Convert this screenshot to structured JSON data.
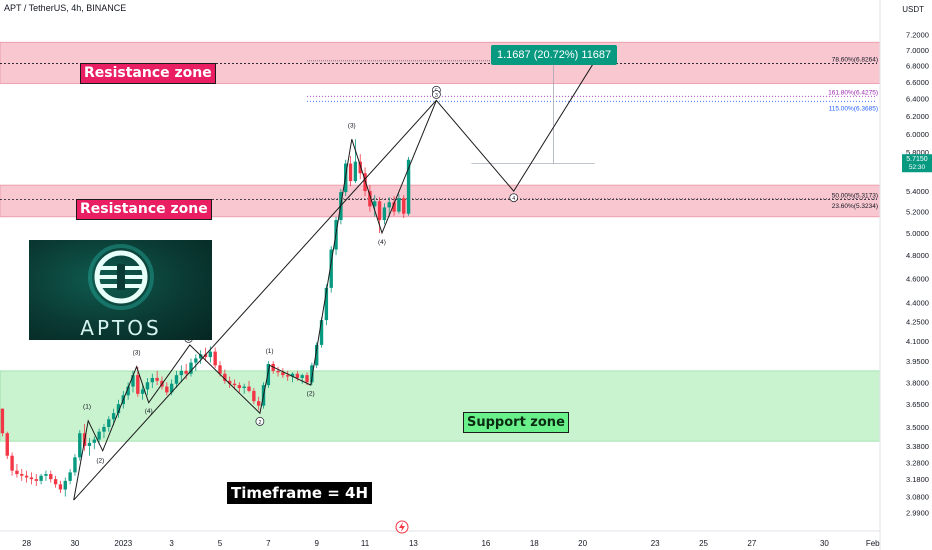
{
  "header": {
    "symbol": "APT / TetherUS, 4h, BINANCE",
    "currency": "USDT"
  },
  "logo": {
    "wordmark": "APTOS"
  },
  "annotations": {
    "resistance_upper": "Resistance zone",
    "resistance_lower": "Resistance zone",
    "support": "Support zone",
    "timeframe": "Timeframe = 4H",
    "measure": "1.1687 (20.72%) 11687"
  },
  "colors": {
    "up": "#089981",
    "down": "#f23645",
    "resistance": "#f8c7d0",
    "support": "#c9f2cf",
    "wave": "#1b1b1b"
  },
  "chart_data": {
    "type": "candlestick",
    "title": "",
    "scale": "log",
    "y_ticks": [
      7.2,
      7.0,
      6.8,
      6.6,
      6.4,
      6.2,
      6.0,
      5.8,
      5.4,
      5.2,
      5.0,
      4.8,
      4.6,
      4.4,
      4.25,
      4.1,
      3.95,
      3.8,
      3.65,
      3.5,
      3.38,
      3.28,
      3.18,
      3.08,
      2.99
    ],
    "y_tick_labels": [
      "7.2000",
      "7.0000",
      "6.8000",
      "6.6000",
      "6.4000",
      "6.2000",
      "6.0000",
      "5.8000",
      "5.4000",
      "5.2000",
      "5.0000",
      "4.8000",
      "4.6000",
      "4.4000",
      "4.2500",
      "4.1000",
      "3.9500",
      "3.8000",
      "3.6500",
      "3.5000",
      "3.3800",
      "3.2800",
      "3.1800",
      "3.0800",
      "2.9900"
    ],
    "ylim": [
      2.95,
      7.45
    ],
    "x_ticks": [
      {
        "label": "28",
        "day": -4
      },
      {
        "label": "30",
        "day": -2
      },
      {
        "label": "2023",
        "day": 0
      },
      {
        "label": "3",
        "day": 2
      },
      {
        "label": "5",
        "day": 4
      },
      {
        "label": "7",
        "day": 6
      },
      {
        "label": "9",
        "day": 8
      },
      {
        "label": "11",
        "day": 10
      },
      {
        "label": "13",
        "day": 12
      },
      {
        "label": "16",
        "day": 15
      },
      {
        "label": "18",
        "day": 17
      },
      {
        "label": "20",
        "day": 19
      },
      {
        "label": "23",
        "day": 22
      },
      {
        "label": "25",
        "day": 24
      },
      {
        "label": "27",
        "day": 26
      },
      {
        "label": "30",
        "day": 29
      },
      {
        "label": "Feb",
        "day": 31
      }
    ],
    "xlim": [
      -5.1,
      31.3
    ],
    "current_price": {
      "value": 5.715,
      "label": "5.7150",
      "countdown": "52:30"
    },
    "zones": [
      {
        "name": "Resistance zone",
        "low": 6.58,
        "high": 7.1,
        "kind": "resistance"
      },
      {
        "name": "Resistance zone",
        "low": 5.15,
        "high": 5.46,
        "kind": "resistance"
      },
      {
        "name": "Support zone",
        "low": 3.41,
        "high": 3.88,
        "kind": "support"
      }
    ],
    "levels": [
      {
        "label": "78.60%(6.8264)",
        "price": 6.8264,
        "color": "#131722",
        "dash": "2,2",
        "x_from": -5.1
      },
      {
        "label": "161.80%(6.4275)",
        "price": 6.4275,
        "color": "#9c27b0",
        "dash": "1,2",
        "x_from": 7.6
      },
      {
        "label": "115.00%(6.3685)",
        "price": 6.3685,
        "color": "#2962ff",
        "dash": "1,2",
        "x_from": 7.6
      },
      {
        "label": "50.00%(5.3173)",
        "price": 5.3173,
        "color": "#131722",
        "dash": "2,2",
        "x_from": -5.1
      },
      {
        "label": "23.60%(5.3234)",
        "price": 5.3234,
        "color": "#131722",
        "dash": "1,2",
        "x_from": 7.6
      }
    ],
    "candles": [
      [
        -5.0,
        3.62,
        3.62,
        3.44,
        3.46
      ],
      [
        -4.8,
        3.46,
        3.47,
        3.3,
        3.32
      ],
      [
        -4.6,
        3.32,
        3.34,
        3.2,
        3.23
      ],
      [
        -4.4,
        3.23,
        3.27,
        3.19,
        3.21
      ],
      [
        -4.2,
        3.21,
        3.24,
        3.17,
        3.2
      ],
      [
        -4.0,
        3.2,
        3.23,
        3.16,
        3.19
      ],
      [
        -3.8,
        3.19,
        3.22,
        3.15,
        3.18
      ],
      [
        -3.6,
        3.18,
        3.21,
        3.14,
        3.17
      ],
      [
        -3.4,
        3.17,
        3.21,
        3.15,
        3.2
      ],
      [
        -3.2,
        3.2,
        3.23,
        3.17,
        3.21
      ],
      [
        -3.0,
        3.21,
        3.23,
        3.16,
        3.18
      ],
      [
        -2.8,
        3.18,
        3.2,
        3.13,
        3.15
      ],
      [
        -2.6,
        3.15,
        3.17,
        3.1,
        3.12
      ],
      [
        -2.4,
        3.12,
        3.19,
        3.08,
        3.17
      ],
      [
        -2.2,
        3.17,
        3.24,
        3.15,
        3.22
      ],
      [
        -2.0,
        3.22,
        3.33,
        3.2,
        3.31
      ],
      [
        -1.8,
        3.31,
        3.48,
        3.29,
        3.46
      ],
      [
        -1.6,
        3.46,
        3.52,
        3.35,
        3.38
      ],
      [
        -1.4,
        3.38,
        3.43,
        3.32,
        3.4
      ],
      [
        -1.2,
        3.4,
        3.44,
        3.36,
        3.42
      ],
      [
        -1.0,
        3.42,
        3.49,
        3.39,
        3.47
      ],
      [
        -0.8,
        3.47,
        3.52,
        3.43,
        3.5
      ],
      [
        -0.6,
        3.5,
        3.57,
        3.47,
        3.55
      ],
      [
        -0.4,
        3.55,
        3.62,
        3.51,
        3.59
      ],
      [
        -0.2,
        3.59,
        3.68,
        3.56,
        3.65
      ],
      [
        0.0,
        3.65,
        3.74,
        3.62,
        3.71
      ],
      [
        0.2,
        3.71,
        3.8,
        3.68,
        3.77
      ],
      [
        0.4,
        3.77,
        3.88,
        3.73,
        3.85
      ],
      [
        0.6,
        3.85,
        3.91,
        3.7,
        3.72
      ],
      [
        0.8,
        3.72,
        3.78,
        3.68,
        3.75
      ],
      [
        1.0,
        3.75,
        3.83,
        3.71,
        3.8
      ],
      [
        1.2,
        3.8,
        3.86,
        3.76,
        3.83
      ],
      [
        1.4,
        3.83,
        3.88,
        3.78,
        3.81
      ],
      [
        1.6,
        3.81,
        3.84,
        3.75,
        3.77
      ],
      [
        1.8,
        3.77,
        3.8,
        3.71,
        3.73
      ],
      [
        2.0,
        3.73,
        3.82,
        3.71,
        3.79
      ],
      [
        2.2,
        3.79,
        3.88,
        3.76,
        3.85
      ],
      [
        2.4,
        3.85,
        3.92,
        3.8,
        3.88
      ],
      [
        2.6,
        3.88,
        3.93,
        3.82,
        3.86
      ],
      [
        2.8,
        3.86,
        3.97,
        3.84,
        3.94
      ],
      [
        3.0,
        3.94,
        4.0,
        3.88,
        3.97
      ],
      [
        3.2,
        3.97,
        4.03,
        3.93,
        4.0
      ],
      [
        3.4,
        4.0,
        4.05,
        3.95,
        3.98
      ],
      [
        3.6,
        3.98,
        4.06,
        3.94,
        4.02
      ],
      [
        3.8,
        4.02,
        4.05,
        3.9,
        3.92
      ],
      [
        4.0,
        3.92,
        3.95,
        3.84,
        3.86
      ],
      [
        4.2,
        3.86,
        3.89,
        3.79,
        3.81
      ],
      [
        4.4,
        3.81,
        3.84,
        3.76,
        3.79
      ],
      [
        4.6,
        3.79,
        3.82,
        3.75,
        3.78
      ],
      [
        4.8,
        3.78,
        3.8,
        3.73,
        3.76
      ],
      [
        5.0,
        3.76,
        3.79,
        3.72,
        3.77
      ],
      [
        5.2,
        3.77,
        3.81,
        3.73,
        3.74
      ],
      [
        5.4,
        3.74,
        3.76,
        3.65,
        3.67
      ],
      [
        5.6,
        3.67,
        3.7,
        3.61,
        3.64
      ],
      [
        5.8,
        3.64,
        3.8,
        3.62,
        3.78
      ],
      [
        6.0,
        3.78,
        3.95,
        3.76,
        3.93
      ],
      [
        6.2,
        3.93,
        3.95,
        3.86,
        3.88
      ],
      [
        6.4,
        3.88,
        3.91,
        3.84,
        3.87
      ],
      [
        6.6,
        3.87,
        3.9,
        3.83,
        3.85
      ],
      [
        6.8,
        3.85,
        3.88,
        3.81,
        3.84
      ],
      [
        7.0,
        3.84,
        3.87,
        3.8,
        3.86
      ],
      [
        7.2,
        3.86,
        3.88,
        3.81,
        3.83
      ],
      [
        7.4,
        3.83,
        3.86,
        3.79,
        3.85
      ],
      [
        7.6,
        3.85,
        3.87,
        3.78,
        3.8
      ],
      [
        7.8,
        3.8,
        3.94,
        3.78,
        3.92
      ],
      [
        8.0,
        3.92,
        4.09,
        3.9,
        4.07
      ],
      [
        8.2,
        4.07,
        4.28,
        4.05,
        4.26
      ],
      [
        8.4,
        4.26,
        4.55,
        4.22,
        4.52
      ],
      [
        8.6,
        4.52,
        4.88,
        4.48,
        4.85
      ],
      [
        8.8,
        4.85,
        5.15,
        4.8,
        5.12
      ],
      [
        9.0,
        5.12,
        5.42,
        5.08,
        5.39
      ],
      [
        9.2,
        5.39,
        5.72,
        5.35,
        5.68
      ],
      [
        9.4,
        5.68,
        5.76,
        5.45,
        5.5
      ],
      [
        9.6,
        5.5,
        5.94,
        5.48,
        5.7
      ],
      [
        9.8,
        5.7,
        5.78,
        5.52,
        5.58
      ],
      [
        10.0,
        5.58,
        5.64,
        5.35,
        5.4
      ],
      [
        10.2,
        5.4,
        5.46,
        5.2,
        5.25
      ],
      [
        10.4,
        5.25,
        5.36,
        5.15,
        5.3
      ],
      [
        10.6,
        5.3,
        5.34,
        5.0,
        5.12
      ],
      [
        10.8,
        5.12,
        5.28,
        5.08,
        5.24
      ],
      [
        11.0,
        5.24,
        5.34,
        5.15,
        5.29
      ],
      [
        11.2,
        5.29,
        5.35,
        5.16,
        5.2
      ],
      [
        11.4,
        5.2,
        5.37,
        5.18,
        5.33
      ],
      [
        11.6,
        5.33,
        5.36,
        5.14,
        5.18
      ],
      [
        11.8,
        5.18,
        5.75,
        5.16,
        5.72
      ]
    ],
    "wave_path": [
      [
        -2.05,
        3.06
      ],
      [
        -1.45,
        3.54
      ],
      [
        -0.85,
        3.35
      ],
      [
        0.55,
        3.91
      ],
      [
        1.05,
        3.66
      ],
      [
        2.75,
        4.07
      ],
      [
        5.65,
        3.59
      ],
      [
        6.05,
        3.92
      ],
      [
        7.75,
        3.78
      ],
      [
        9.45,
        5.94
      ],
      [
        10.7,
        5.0
      ],
      [
        12.95,
        6.38
      ],
      [
        16.15,
        5.4
      ],
      [
        19.55,
        6.88
      ]
    ],
    "impulse_line": [
      [
        -2.05,
        3.06
      ],
      [
        12.95,
        6.38
      ]
    ],
    "wave_labels": [
      {
        "day": -1.5,
        "price": 3.62,
        "text": "(1)"
      },
      {
        "day": -0.95,
        "price": 3.28,
        "text": "(2)"
      },
      {
        "day": 0.55,
        "price": 4.0,
        "text": "(3)"
      },
      {
        "day": 1.05,
        "price": 3.59,
        "text": "(4)"
      },
      {
        "day": 2.7,
        "price": 4.18,
        "text": "(5)",
        "circle": true
      },
      {
        "day": 2.7,
        "price": 4.1,
        "text": "(1)",
        "circle": true
      },
      {
        "day": 5.65,
        "price": 3.52,
        "text": "(2)",
        "circle": true
      },
      {
        "day": 6.05,
        "price": 4.01,
        "text": "(1)"
      },
      {
        "day": 7.75,
        "price": 3.71,
        "text": "(2)"
      },
      {
        "day": 9.45,
        "price": 6.07,
        "text": "(3)"
      },
      {
        "day": 10.7,
        "price": 4.9,
        "text": "(4)"
      },
      {
        "day": 12.95,
        "price": 6.47,
        "text": "(5)",
        "circle": true
      },
      {
        "day": 12.95,
        "price": 6.42,
        "text": "(3)",
        "circle": true
      },
      {
        "day": 16.15,
        "price": 5.31,
        "text": "(4)",
        "circle": true
      },
      {
        "day": 19.55,
        "price": 6.95,
        "text": "(5)",
        "circle": true
      }
    ],
    "measure_box": {
      "day_from": 14.4,
      "day_to": 19.5,
      "price_from": 5.68,
      "price_to": 6.86
    }
  }
}
